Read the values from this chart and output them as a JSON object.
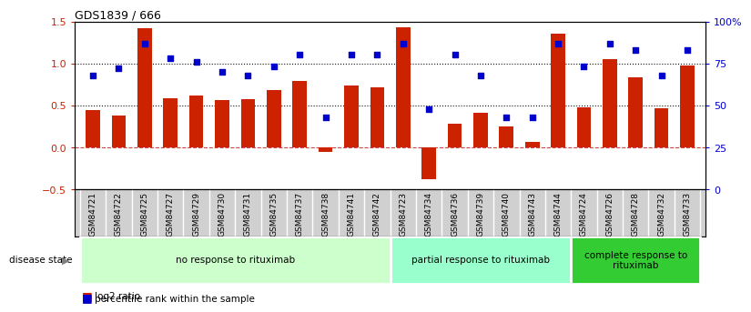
{
  "title": "GDS1839 / 666",
  "samples": [
    "GSM84721",
    "GSM84722",
    "GSM84725",
    "GSM84727",
    "GSM84729",
    "GSM84730",
    "GSM84731",
    "GSM84735",
    "GSM84737",
    "GSM84738",
    "GSM84741",
    "GSM84742",
    "GSM84723",
    "GSM84734",
    "GSM84736",
    "GSM84739",
    "GSM84740",
    "GSM84743",
    "GSM84744",
    "GSM84724",
    "GSM84726",
    "GSM84728",
    "GSM84732",
    "GSM84733"
  ],
  "log2_ratio": [
    0.44,
    0.38,
    1.42,
    0.58,
    0.62,
    0.56,
    0.57,
    0.68,
    0.79,
    -0.05,
    0.74,
    0.72,
    1.43,
    -0.38,
    0.28,
    0.41,
    0.25,
    0.07,
    1.35,
    0.48,
    1.05,
    0.83,
    0.47,
    0.97
  ],
  "percentile": [
    68,
    72,
    87,
    78,
    76,
    70,
    68,
    73,
    80,
    43,
    80,
    80,
    87,
    48,
    80,
    68,
    43,
    43,
    87,
    73,
    87,
    83,
    68,
    83
  ],
  "groups": [
    {
      "label": "no response to rituximab",
      "start": 0,
      "end": 12,
      "color": "#ccffcc"
    },
    {
      "label": "partial response to rituximab",
      "start": 12,
      "end": 19,
      "color": "#99ffcc"
    },
    {
      "label": "complete response to\nrituximab",
      "start": 19,
      "end": 24,
      "color": "#33cc33"
    }
  ],
  "bar_color": "#cc2200",
  "dot_color": "#0000cc",
  "ylim_left": [
    -0.5,
    1.5
  ],
  "ylim_right": [
    0,
    100
  ],
  "yticks_left": [
    -0.5,
    0.0,
    0.5,
    1.0,
    1.5
  ],
  "yticks_right": [
    0,
    25,
    50,
    75,
    100
  ],
  "ytick_labels_right": [
    "0",
    "25",
    "50",
    "75",
    "100%"
  ],
  "hlines": [
    0.0,
    0.5,
    1.0
  ],
  "hline_styles": [
    "--",
    ":",
    ":"
  ],
  "hline_colors": [
    "#cc4444",
    "#111111",
    "#111111"
  ],
  "tick_label_color_left": "#cc2200",
  "tick_label_color_right": "#0000cc",
  "bg_color": "#ffffff",
  "sample_label_bg": "#d0d0d0"
}
